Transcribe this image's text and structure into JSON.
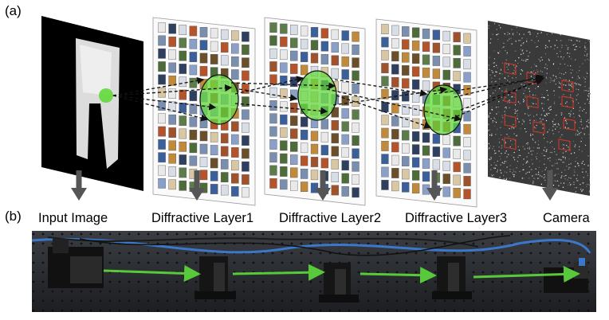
{
  "panel_a_label": "(a)",
  "panel_b_label": "(b)",
  "stages": [
    {
      "label": "Input Image",
      "name": "input-image"
    },
    {
      "label": "Diffractive Layer1",
      "name": "diffractive-layer-1"
    },
    {
      "label": "Diffractive Layer2",
      "name": "diffractive-layer-2"
    },
    {
      "label": "Diffractive Layer3",
      "name": "diffractive-layer-3"
    },
    {
      "label": "Camera",
      "name": "camera"
    }
  ],
  "colors": {
    "beam_green": "#63d83c",
    "optical_path_arrow": "#58c93a",
    "down_arrow": "#555555",
    "detector_region": "#c0392b",
    "fiber_blue": "#3b78c9",
    "pixel_palette": [
      "#3b5f9a",
      "#d8dde6",
      "#4e6b3a",
      "#b5532a",
      "#c08a3a",
      "#7a8fb0",
      "#e9e9e9",
      "#2f3f5f",
      "#8aa0c8",
      "#a0522d",
      "#5c7c4a",
      "#d9c7a3",
      "#6b4f2a"
    ]
  }
}
